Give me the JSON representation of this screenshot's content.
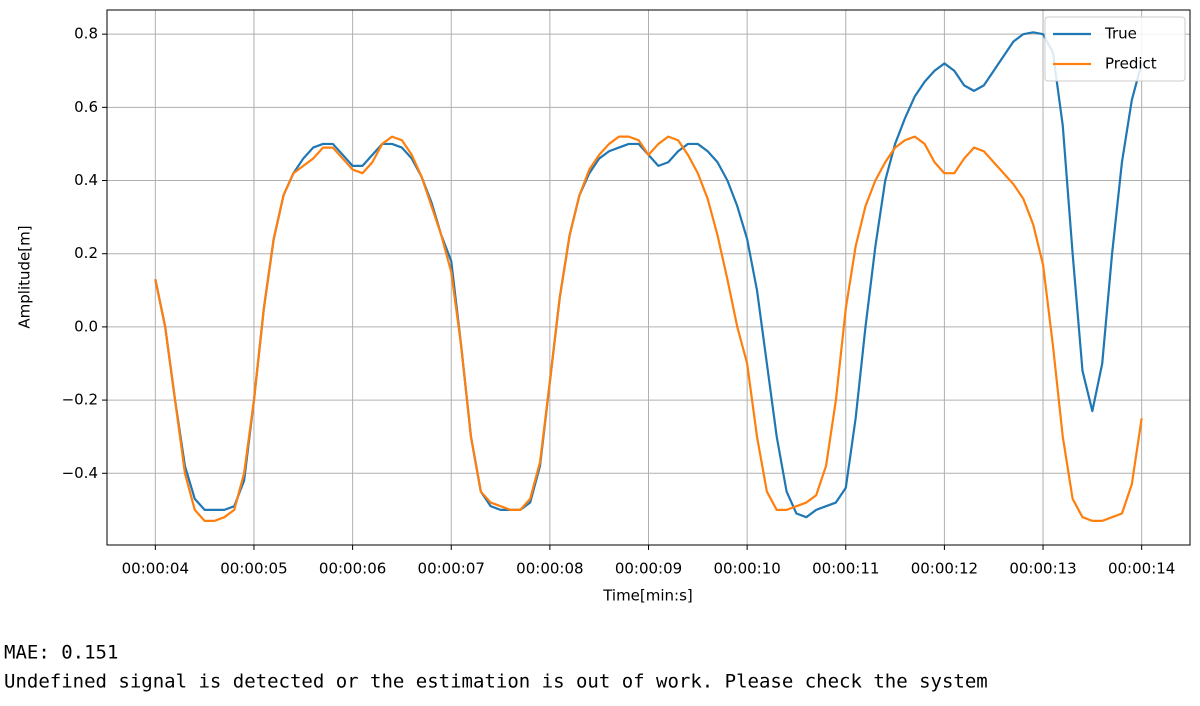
{
  "chart_data": {
    "type": "line",
    "xlabel": "Time[min:s]",
    "ylabel": "Amplitude[m]",
    "x": [
      4.0,
      4.1,
      4.2,
      4.3,
      4.4,
      4.5,
      4.6,
      4.7,
      4.8,
      4.9,
      5.0,
      5.1,
      5.2,
      5.3,
      5.4,
      5.5,
      5.6,
      5.7,
      5.8,
      5.9,
      6.0,
      6.1,
      6.2,
      6.3,
      6.4,
      6.5,
      6.6,
      6.7,
      6.8,
      6.9,
      7.0,
      7.1,
      7.2,
      7.3,
      7.4,
      7.5,
      7.6,
      7.7,
      7.8,
      7.9,
      8.0,
      8.1,
      8.2,
      8.3,
      8.4,
      8.5,
      8.6,
      8.7,
      8.8,
      8.9,
      9.0,
      9.1,
      9.2,
      9.3,
      9.4,
      9.5,
      9.6,
      9.7,
      9.8,
      9.9,
      10.0,
      10.1,
      10.2,
      10.3,
      10.4,
      10.5,
      10.6,
      10.7,
      10.8,
      10.9,
      11.0,
      11.1,
      11.2,
      11.3,
      11.4,
      11.5,
      11.6,
      11.7,
      11.8,
      11.9,
      12.0,
      12.1,
      12.2,
      12.3,
      12.4,
      12.5,
      12.6,
      12.7,
      12.8,
      12.9,
      13.0,
      13.1,
      13.2,
      13.3,
      13.4,
      13.5,
      13.6,
      13.7,
      13.8,
      13.9,
      14.0
    ],
    "series": [
      {
        "name": "True",
        "color": "#1f77b4",
        "values": [
          0.13,
          0.0,
          -0.2,
          -0.38,
          -0.47,
          -0.5,
          -0.5,
          -0.5,
          -0.49,
          -0.42,
          -0.2,
          0.05,
          0.24,
          0.36,
          0.42,
          0.46,
          0.49,
          0.5,
          0.5,
          0.47,
          0.44,
          0.44,
          0.47,
          0.5,
          0.5,
          0.49,
          0.46,
          0.41,
          0.34,
          0.25,
          0.18,
          -0.05,
          -0.3,
          -0.45,
          -0.49,
          -0.5,
          -0.5,
          -0.5,
          -0.48,
          -0.38,
          -0.15,
          0.08,
          0.25,
          0.36,
          0.42,
          0.46,
          0.48,
          0.49,
          0.5,
          0.5,
          0.47,
          0.44,
          0.45,
          0.48,
          0.5,
          0.5,
          0.48,
          0.45,
          0.4,
          0.33,
          0.24,
          0.1,
          -0.1,
          -0.3,
          -0.45,
          -0.51,
          -0.52,
          -0.5,
          -0.49,
          -0.48,
          -0.44,
          -0.25,
          0.0,
          0.22,
          0.4,
          0.5,
          0.57,
          0.63,
          0.67,
          0.7,
          0.72,
          0.7,
          0.66,
          0.645,
          0.66,
          0.7,
          0.74,
          0.78,
          0.8,
          0.805,
          0.8,
          0.75,
          0.55,
          0.2,
          -0.12,
          -0.23,
          -0.1,
          0.2,
          0.45,
          0.62,
          0.72
        ]
      },
      {
        "name": "Predict",
        "color": "#ff7f0e",
        "values": [
          0.13,
          0.0,
          -0.2,
          -0.4,
          -0.5,
          -0.53,
          -0.53,
          -0.52,
          -0.5,
          -0.4,
          -0.2,
          0.05,
          0.24,
          0.36,
          0.42,
          0.44,
          0.46,
          0.49,
          0.49,
          0.46,
          0.43,
          0.42,
          0.45,
          0.5,
          0.52,
          0.51,
          0.47,
          0.41,
          0.33,
          0.25,
          0.15,
          -0.05,
          -0.3,
          -0.45,
          -0.48,
          -0.49,
          -0.5,
          -0.5,
          -0.47,
          -0.37,
          -0.15,
          0.08,
          0.25,
          0.36,
          0.43,
          0.47,
          0.5,
          0.52,
          0.52,
          0.51,
          0.47,
          0.5,
          0.52,
          0.51,
          0.47,
          0.42,
          0.35,
          0.25,
          0.13,
          0.0,
          -0.1,
          -0.3,
          -0.45,
          -0.5,
          -0.5,
          -0.49,
          -0.48,
          -0.46,
          -0.38,
          -0.2,
          0.05,
          0.22,
          0.33,
          0.4,
          0.45,
          0.49,
          0.51,
          0.52,
          0.5,
          0.45,
          0.42,
          0.42,
          0.46,
          0.49,
          0.48,
          0.45,
          0.42,
          0.39,
          0.35,
          0.28,
          0.17,
          -0.05,
          -0.3,
          -0.47,
          -0.52,
          -0.53,
          -0.53,
          -0.52,
          -0.51,
          -0.43,
          -0.25
        ]
      }
    ],
    "xlim": [
      3.51,
      14.49
    ],
    "ylim": [
      -0.596,
      0.866
    ],
    "xticks": [
      {
        "value": 4,
        "label": "00:00:04"
      },
      {
        "value": 5,
        "label": "00:00:05"
      },
      {
        "value": 6,
        "label": "00:00:06"
      },
      {
        "value": 7,
        "label": "00:00:07"
      },
      {
        "value": 8,
        "label": "00:00:08"
      },
      {
        "value": 9,
        "label": "00:00:09"
      },
      {
        "value": 10,
        "label": "00:00:10"
      },
      {
        "value": 11,
        "label": "00:00:11"
      },
      {
        "value": 12,
        "label": "00:00:12"
      },
      {
        "value": 13,
        "label": "00:00:13"
      },
      {
        "value": 14,
        "label": "00:00:14"
      }
    ],
    "yticks": [
      0.8,
      0.6,
      0.4,
      0.2,
      {
        "value": 0,
        "label": "0.0"
      },
      {
        "value": -0.2,
        "label": "−0.2"
      },
      {
        "value": -0.4,
        "label": "−0.4"
      }
    ],
    "grid": true,
    "legend": "upper right"
  },
  "status": {
    "mae": "MAE: 0.151",
    "message": "Undefined signal is detected or the estimation is out of work. Please check the system"
  }
}
